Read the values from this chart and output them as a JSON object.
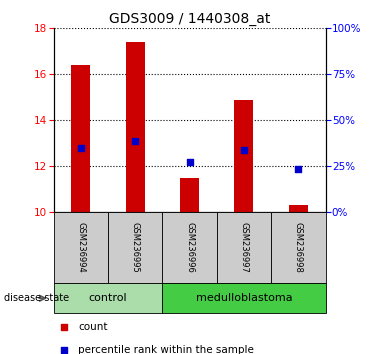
{
  "title": "GDS3009 / 1440308_at",
  "samples": [
    "GSM236994",
    "GSM236995",
    "GSM236996",
    "GSM236997",
    "GSM236998"
  ],
  "bar_tops": [
    16.4,
    17.4,
    11.5,
    14.9,
    10.3
  ],
  "bar_bottom": 10.0,
  "percentile_values": [
    12.8,
    13.1,
    12.2,
    12.7,
    11.9
  ],
  "ylim": [
    10,
    18
  ],
  "yticks_left": [
    10,
    12,
    14,
    16,
    18
  ],
  "yticks_right": [
    0,
    25,
    50,
    75,
    100
  ],
  "right_ylim": [
    0,
    100
  ],
  "bar_color": "#cc0000",
  "percentile_color": "#0000cc",
  "groups": [
    {
      "label": "control",
      "indices": [
        0,
        1
      ],
      "color": "#aaddaa"
    },
    {
      "label": "medulloblastoma",
      "indices": [
        2,
        3,
        4
      ],
      "color": "#44cc44"
    }
  ],
  "sample_box_color": "#cccccc",
  "disease_state_label": "disease state",
  "legend_count_label": "count",
  "legend_percentile_label": "percentile rank within the sample",
  "plot_bg_color": "#ffffff",
  "title_fontsize": 10,
  "tick_fontsize": 7.5,
  "sample_fontsize": 6,
  "group_fontsize": 8,
  "legend_fontsize": 7.5
}
